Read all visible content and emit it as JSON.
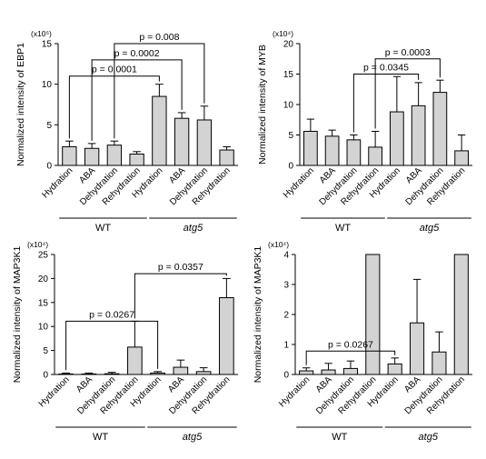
{
  "chart_data": [
    {
      "type": "bar",
      "scale_label": "(x10⁵)",
      "ylabel": "Normalized intensity of EBP1",
      "ylim": [
        0,
        15
      ],
      "yticks": [
        0,
        5,
        10,
        15
      ],
      "categories": [
        "Hydration",
        "ABA",
        "Dehydration",
        "Rehydration",
        "Hydration",
        "ABA",
        "Dehydration",
        "Rehydration"
      ],
      "values": [
        2.3,
        2.1,
        2.5,
        1.4,
        8.5,
        5.8,
        5.6,
        1.9
      ],
      "errors": [
        0.7,
        0.6,
        0.5,
        0.3,
        1.5,
        0.7,
        1.7,
        0.4
      ],
      "groups": [
        {
          "label": "WT",
          "from": 0,
          "to": 3,
          "italic": false
        },
        {
          "label": "atg5",
          "from": 4,
          "to": 7,
          "italic": true
        }
      ],
      "brackets": [
        {
          "label": "p = 0.0001",
          "from": 0,
          "to": 4,
          "y": 11.0
        },
        {
          "label": "p = 0.0002",
          "from": 1,
          "to": 5,
          "y": 13.0
        },
        {
          "label": "p = 0.008",
          "from": 2,
          "to": 6,
          "y": 15.0
        }
      ]
    },
    {
      "type": "bar",
      "scale_label": "(x10⁴)",
      "ylabel": "Normalized intensity of MYB",
      "ylim": [
        0,
        20
      ],
      "yticks": [
        0,
        5,
        10,
        15,
        20
      ],
      "categories": [
        "Hydration",
        "ABA",
        "Dehydration",
        "Rehydration",
        "Hydration",
        "ABA",
        "Dehydration",
        "Rehydration"
      ],
      "values": [
        5.6,
        4.8,
        4.2,
        3.0,
        8.8,
        9.8,
        12.0,
        2.4
      ],
      "errors": [
        2.0,
        1.0,
        0.8,
        2.6,
        5.8,
        3.8,
        2.0,
        2.6
      ],
      "groups": [
        {
          "label": "WT",
          "from": 0,
          "to": 3,
          "italic": false
        },
        {
          "label": "atg5",
          "from": 4,
          "to": 7,
          "italic": true
        }
      ],
      "brackets": [
        {
          "label": "p = 0.0345",
          "from": 2,
          "to": 5,
          "y": 15.0
        },
        {
          "label": "p = 0.0003",
          "from": 3,
          "to": 6,
          "y": 17.5
        }
      ]
    },
    {
      "type": "bar",
      "scale_label": "(x10⁴)",
      "ylabel": "Normalized intensity of MAP3K1",
      "ylim": [
        0,
        25
      ],
      "yticks": [
        0,
        5,
        10,
        15,
        20,
        25
      ],
      "categories": [
        "Hydration",
        "ABA",
        "Dehydration",
        "Rehydration",
        "Hydration",
        "ABA",
        "Dehydration",
        "Rehydration"
      ],
      "values": [
        0.1,
        0.1,
        0.15,
        5.7,
        0.3,
        1.5,
        0.6,
        16.0
      ],
      "errors": [
        0.2,
        0.2,
        0.3,
        5.4,
        0.3,
        1.5,
        0.8,
        4.0
      ],
      "groups": [
        {
          "label": "WT",
          "from": 0,
          "to": 3,
          "italic": false
        },
        {
          "label": "atg5",
          "from": 4,
          "to": 7,
          "italic": true
        }
      ],
      "brackets": [
        {
          "label": "p = 0.0267",
          "from": 0,
          "to": 4,
          "y": 11.1
        },
        {
          "label": "p = 0.0357",
          "from": 3,
          "to": 7,
          "y": 21.0
        }
      ]
    },
    {
      "type": "bar",
      "scale_label": "(x10⁴)",
      "ylabel": "Normalized intensity of MAP3K1",
      "ylim": [
        0,
        4
      ],
      "yticks": [
        0,
        1,
        2,
        3,
        4
      ],
      "categories": [
        "Hydration",
        "ABA",
        "Dehydration",
        "Rehydration",
        "Hydration",
        "ABA",
        "Dehydration",
        "Rehydration"
      ],
      "values": [
        0.12,
        0.15,
        0.2,
        4.0,
        0.35,
        1.72,
        0.75,
        4.0
      ],
      "errors": [
        0.1,
        0.22,
        0.25,
        0,
        0.2,
        1.45,
        0.67,
        0
      ],
      "groups": [
        {
          "label": "WT",
          "from": 0,
          "to": 3,
          "italic": false
        },
        {
          "label": "atg5",
          "from": 4,
          "to": 7,
          "italic": true
        }
      ],
      "brackets": [
        {
          "label": "p = 0.0267",
          "from": 0,
          "to": 4,
          "y": 0.78
        }
      ]
    }
  ]
}
